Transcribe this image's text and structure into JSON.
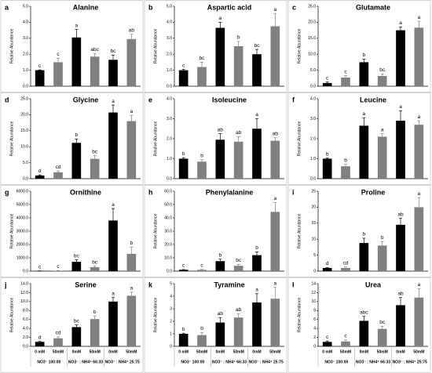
{
  "chart_data": [
    {
      "type": "bar",
      "panel": "a",
      "title": "Alanine",
      "ylabel": "Relative Abundance",
      "values": [
        1.0,
        1.5,
        3.05,
        1.85,
        1.65,
        2.95
      ],
      "errors": [
        0.02,
        0.25,
        0.5,
        0.2,
        0.3,
        0.3
      ],
      "letters": [
        "c",
        "c",
        "a",
        "abc",
        "bc",
        "ab"
      ],
      "colors": [
        "#000000",
        "#808080",
        "#000000",
        "#808080",
        "#000000",
        "#808080"
      ],
      "ylim": [
        0,
        5
      ],
      "yticks": [
        {
          "value": 0,
          "label": "0.0"
        },
        {
          "value": 1,
          "label": "1.0"
        },
        {
          "value": 2,
          "label": "2.0"
        },
        {
          "value": 3,
          "label": "3.0"
        },
        {
          "value": 4,
          "label": "4.0"
        },
        {
          "value": 5,
          "label": "5.0"
        }
      ]
    },
    {
      "type": "bar",
      "panel": "b",
      "title": "Aspartic acid",
      "ylabel": "Relative Abundance",
      "values": [
        1.0,
        1.2,
        3.65,
        2.5,
        2.0,
        3.75
      ],
      "errors": [
        0.05,
        0.3,
        0.35,
        0.3,
        0.3,
        0.8
      ],
      "letters": [
        "c",
        "bc",
        "a",
        "b",
        "bc",
        "a"
      ],
      "colors": [
        "#000000",
        "#808080",
        "#000000",
        "#808080",
        "#000000",
        "#808080"
      ],
      "ylim": [
        0,
        5
      ],
      "yticks": [
        {
          "value": 0,
          "label": "0.0"
        },
        {
          "value": 1,
          "label": "1.0"
        },
        {
          "value": 2,
          "label": "2.0"
        },
        {
          "value": 3,
          "label": "3.0"
        },
        {
          "value": 4,
          "label": "4.0"
        },
        {
          "value": 5,
          "label": "5.0"
        }
      ]
    },
    {
      "type": "bar",
      "panel": "c",
      "title": "Glutamate",
      "ylabel": "Relative Abundance",
      "values": [
        1.0,
        2.7,
        7.5,
        3.2,
        17.5,
        18.3
      ],
      "errors": [
        0.3,
        0.6,
        1.0,
        0.6,
        1.0,
        2.0
      ],
      "letters": [
        "c",
        "c",
        "b",
        "bc",
        "a",
        "a"
      ],
      "colors": [
        "#000000",
        "#808080",
        "#000000",
        "#808080",
        "#000000",
        "#808080"
      ],
      "ylim": [
        0,
        25
      ],
      "yticks": [
        {
          "value": 0,
          "label": "0.0"
        },
        {
          "value": 5,
          "label": "5.0"
        },
        {
          "value": 10,
          "label": "10.0"
        },
        {
          "value": 15,
          "label": "15.0"
        },
        {
          "value": 20,
          "label": "20.0"
        },
        {
          "value": 25,
          "label": "25.0"
        }
      ]
    },
    {
      "type": "bar",
      "panel": "d",
      "title": "Glycine",
      "ylabel": "Relative Abundance",
      "values": [
        1.0,
        2.0,
        11.2,
        6.2,
        20.7,
        18.0
      ],
      "errors": [
        0.2,
        0.4,
        1.2,
        1.0,
        2.3,
        1.8
      ],
      "letters": [
        "d",
        "cd",
        "b",
        "bc",
        "a",
        "a"
      ],
      "colors": [
        "#000000",
        "#808080",
        "#000000",
        "#808080",
        "#000000",
        "#808080"
      ],
      "ylim": [
        0,
        25
      ],
      "yticks": [
        {
          "value": 0,
          "label": "0.0"
        },
        {
          "value": 5,
          "label": "5.0"
        },
        {
          "value": 10,
          "label": "10.0"
        },
        {
          "value": 15,
          "label": "15.0"
        },
        {
          "value": 20,
          "label": "20.0"
        },
        {
          "value": 25,
          "label": "25.0"
        }
      ]
    },
    {
      "type": "bar",
      "panel": "e",
      "title": "Isoleucine",
      "ylabel": "Relative Abundance",
      "values": [
        1.0,
        0.85,
        1.95,
        1.85,
        2.5,
        1.9
      ],
      "errors": [
        0.05,
        0.1,
        0.3,
        0.25,
        0.5,
        0.15
      ],
      "letters": [
        "b",
        "b",
        "ab",
        "ab",
        "a",
        "ab"
      ],
      "colors": [
        "#000000",
        "#808080",
        "#000000",
        "#808080",
        "#000000",
        "#808080"
      ],
      "ylim": [
        0,
        4
      ],
      "yticks": [
        {
          "value": 0,
          "label": "0.0"
        },
        {
          "value": 1,
          "label": "1.0"
        },
        {
          "value": 2,
          "label": "2.0"
        },
        {
          "value": 3,
          "label": "3.0"
        },
        {
          "value": 4,
          "label": "4.0"
        }
      ]
    },
    {
      "type": "bar",
      "panel": "f",
      "title": "Leucine",
      "ylabel": "Relative Abundance",
      "values": [
        1.0,
        0.62,
        2.65,
        2.1,
        2.9,
        2.7
      ],
      "errors": [
        0.03,
        0.1,
        0.4,
        0.15,
        0.5,
        0.2
      ],
      "letters": [
        "b",
        "b",
        "a",
        "a",
        "a",
        "a"
      ],
      "colors": [
        "#000000",
        "#808080",
        "#000000",
        "#808080",
        "#000000",
        "#808080"
      ],
      "ylim": [
        0,
        4
      ],
      "yticks": [
        {
          "value": 0,
          "label": "0.0"
        },
        {
          "value": 1,
          "label": "1.0"
        },
        {
          "value": 2,
          "label": "2.0"
        },
        {
          "value": 3,
          "label": "3.0"
        },
        {
          "value": 4,
          "label": "4.0"
        }
      ]
    },
    {
      "type": "bar",
      "panel": "g",
      "title": "Ornithine",
      "ylabel": "Relative Abundance",
      "values": [
        20,
        30,
        700,
        300,
        3800,
        1300
      ],
      "errors": [
        5,
        10,
        150,
        80,
        900,
        500
      ],
      "letters": [
        "c",
        "c",
        "bc",
        "bc",
        "a",
        "b"
      ],
      "colors": [
        "#000000",
        "#808080",
        "#000000",
        "#808080",
        "#000000",
        "#808080"
      ],
      "ylim": [
        0,
        6000
      ],
      "yticks": [
        {
          "value": 0,
          "label": "0.0"
        },
        {
          "value": 1000,
          "label": "1000.0"
        },
        {
          "value": 2000,
          "label": "2000.0"
        },
        {
          "value": 3000,
          "label": "3000.0"
        },
        {
          "value": 4000,
          "label": "4000.0"
        },
        {
          "value": 5000,
          "label": "5000.0"
        },
        {
          "value": 6000,
          "label": "6000.0"
        }
      ]
    },
    {
      "type": "bar",
      "panel": "h",
      "title": "Phenylalanine",
      "ylabel": "Relative Abundance",
      "values": [
        1.0,
        1.0,
        7.5,
        4.0,
        12.0,
        44.5
      ],
      "errors": [
        0.2,
        0.3,
        1.5,
        1.0,
        2.5,
        7.0
      ],
      "letters": [
        "c",
        "c",
        "b",
        "bc",
        "b",
        "a"
      ],
      "colors": [
        "#000000",
        "#808080",
        "#000000",
        "#808080",
        "#000000",
        "#808080"
      ],
      "ylim": [
        0,
        60
      ],
      "yticks": [
        {
          "value": 0,
          "label": "0.0"
        },
        {
          "value": 10,
          "label": "10.0"
        },
        {
          "value": 20,
          "label": "20.0"
        },
        {
          "value": 30,
          "label": "30.0"
        },
        {
          "value": 40,
          "label": "40.0"
        },
        {
          "value": 50,
          "label": "50.0"
        },
        {
          "value": 60,
          "label": "60.0"
        }
      ]
    },
    {
      "type": "bar",
      "panel": "i",
      "title": "Proline",
      "ylabel": "Relative Abundance",
      "values": [
        1.0,
        1.0,
        8.8,
        8.0,
        14.5,
        20.0
      ],
      "errors": [
        0.1,
        0.3,
        1.5,
        1.2,
        2.0,
        3.0
      ],
      "letters": [
        "d",
        "cd",
        "b",
        "b",
        "ab",
        "a"
      ],
      "colors": [
        "#000000",
        "#808080",
        "#000000",
        "#808080",
        "#000000",
        "#808080"
      ],
      "ylim": [
        0,
        25
      ],
      "yticks": [
        0,
        5,
        10,
        15,
        20,
        25
      ]
    },
    {
      "type": "bar",
      "panel": "j",
      "title": "Serine",
      "ylabel": "Relative Abundance",
      "values": [
        1.0,
        1.8,
        4.3,
        6.1,
        10.0,
        11.3
      ],
      "errors": [
        0.1,
        0.3,
        0.5,
        0.7,
        0.9,
        0.8
      ],
      "letters": [
        "d",
        "cd",
        "bc",
        "b",
        "a",
        "a"
      ],
      "colors": [
        "#000000",
        "#808080",
        "#000000",
        "#808080",
        "#000000",
        "#808080"
      ],
      "ylim": [
        0,
        14
      ],
      "yticks": [
        {
          "value": 0,
          "label": "0.0"
        },
        {
          "value": 2,
          "label": "2.0"
        },
        {
          "value": 4,
          "label": "4.0"
        },
        {
          "value": 6,
          "label": "6.0"
        },
        {
          "value": 8,
          "label": "8.0"
        },
        {
          "value": 10,
          "label": "10.0"
        },
        {
          "value": 12,
          "label": "12.0"
        },
        {
          "value": 14,
          "label": "14.0"
        }
      ],
      "categories": [
        "0 mM",
        "50mM",
        "0mM",
        "50mM",
        "0mM",
        "50mM"
      ],
      "groups": [
        "NO3⁻ 100:00",
        "NO3⁻ : NH4⁺ 66:33",
        "NO3⁻ : NH4⁺ 25:75"
      ]
    },
    {
      "type": "bar",
      "panel": "k",
      "title": "Tyramine",
      "ylabel": "Relative Abundance",
      "values": [
        1.0,
        0.9,
        1.9,
        2.3,
        3.5,
        3.8
      ],
      "errors": [
        0.05,
        0.2,
        0.4,
        0.3,
        0.7,
        0.9
      ],
      "letters": [
        "b",
        "b",
        "ab",
        "ab",
        "a",
        "a"
      ],
      "colors": [
        "#000000",
        "#808080",
        "#000000",
        "#808080",
        "#000000",
        "#808080"
      ],
      "ylim": [
        0,
        5
      ],
      "yticks": [
        0,
        1,
        2,
        3,
        4,
        5
      ],
      "categories": [
        "0 mM",
        "50mM",
        "0mM",
        "50mM",
        "0mM",
        "50mM"
      ],
      "groups": [
        "NO3⁻ 100:00",
        "NO3⁻ : NH4⁺ 66:33",
        "NO3⁻ : NH4⁺ 25:75"
      ]
    },
    {
      "type": "bar",
      "panel": "l",
      "title": "Urea",
      "ylabel": "Relative Abundance",
      "values": [
        1.0,
        1.1,
        5.7,
        3.9,
        9.2,
        10.9
      ],
      "errors": [
        0.2,
        0.3,
        1.0,
        0.6,
        1.7,
        2.0
      ],
      "letters": [
        "c",
        "c",
        "abc",
        "bc",
        "ab",
        "a"
      ],
      "colors": [
        "#000000",
        "#808080",
        "#000000",
        "#808080",
        "#000000",
        "#808080"
      ],
      "ylim": [
        0,
        14
      ],
      "yticks": [
        0,
        2,
        4,
        6,
        8,
        10,
        12,
        14
      ],
      "categories": [
        "0 mM",
        "50mM",
        "0mM",
        "50mM",
        "0mM",
        "50mM"
      ],
      "groups": [
        "NO3⁻ 100:00",
        "NO3⁻ : NH4⁺ 66:33",
        "NO3⁻ : NH4⁺ 25:75"
      ]
    }
  ]
}
